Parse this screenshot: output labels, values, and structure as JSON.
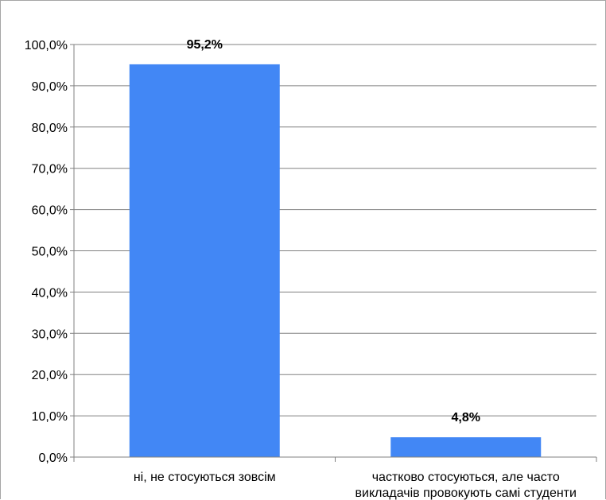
{
  "chart_data": {
    "type": "bar",
    "title": "",
    "xlabel": "",
    "ylabel": "",
    "categories": [
      [
        "ні, не стосуються зовсім"
      ],
      [
        "частково стосуються, але часто",
        "викладачів провокують самі студенти"
      ]
    ],
    "values": [
      95.2,
      4.8
    ],
    "data_labels": [
      "95,2%",
      "4,8%"
    ],
    "ylim": [
      0,
      100
    ],
    "yticks": [
      0,
      10,
      20,
      30,
      40,
      50,
      60,
      70,
      80,
      90,
      100
    ],
    "ytick_labels": [
      "0,0%",
      "10,0%",
      "20,0%",
      "30,0%",
      "40,0%",
      "50,0%",
      "60,0%",
      "70,0%",
      "80,0%",
      "90,0%",
      "100,0%"
    ],
    "grid": true,
    "legend": "none",
    "colors": {
      "bar": "#4287f5",
      "grid": "#808080",
      "axis": "#808080"
    }
  }
}
